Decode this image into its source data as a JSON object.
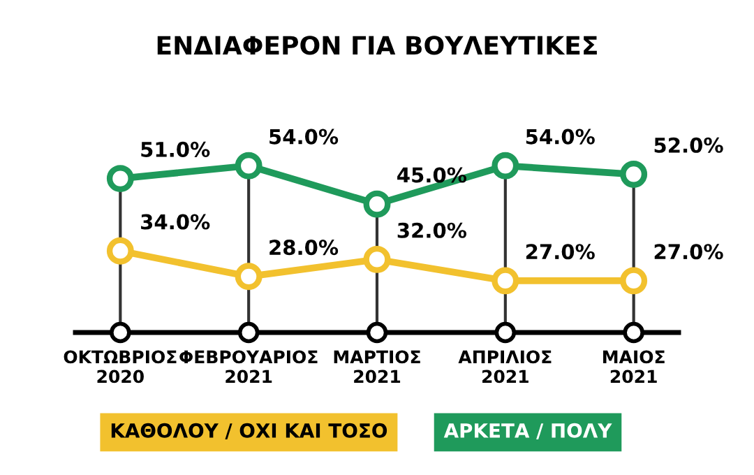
{
  "chart_data": {
    "type": "line",
    "title": "ΕΝΔΙΑΦΕΡΟΝ ΓΙΑ ΒΟΥΛΕΥΤΙΚΕΣ",
    "categories": [
      "ΟΚΤΩΒΡΙΟΣ\n2020",
      "ΦΕΒΡΟΥΑΡΙΟΣ\n2021",
      "ΜΑΡΤΙΟΣ\n2021",
      "ΑΠΡΙΛΙΟΣ\n2021",
      "ΜΑΙΟΣ\n2021"
    ],
    "series": [
      {
        "name": "ΚΑΘΟΛΟΥ / ΟΧΙ ΚΑΙ ΤΟΣΟ",
        "color": "#f2c12e",
        "values": [
          34.0,
          28.0,
          32.0,
          27.0,
          27.0
        ],
        "value_labels": [
          "34.0%",
          "28.0%",
          "32.0%",
          "27.0%",
          "27.0%"
        ]
      },
      {
        "name": "ΑΡΚΕΤΑ / ΠΟΛΥ",
        "color": "#1f9a5b",
        "values": [
          51.0,
          54.0,
          45.0,
          54.0,
          52.0
        ],
        "value_labels": [
          "51.0%",
          "54.0%",
          "45.0%",
          "54.0%",
          "52.0%"
        ]
      }
    ],
    "tick_labels": "x",
    "grid": "x",
    "legend": "bottom",
    "marker": "circle",
    "line_style": "solid"
  }
}
